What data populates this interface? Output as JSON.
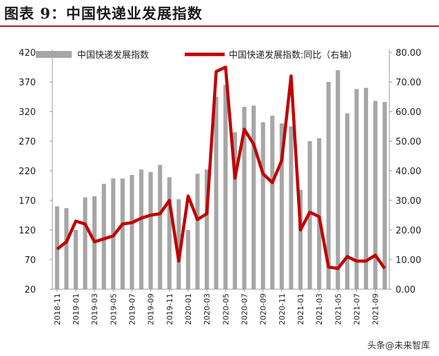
{
  "header": {
    "figure_title": "图表 9：中国快递业发展指数"
  },
  "watermark": "头条@未来智库",
  "colors": {
    "bar": "#a6a6a6",
    "line": "#c00000",
    "title_rule": "#a51c1c"
  },
  "chart_data": {
    "type": "bar",
    "categories": [
      "2018-11",
      "2018-12",
      "2019-01",
      "2019-02",
      "2019-03",
      "2019-04",
      "2019-05",
      "2019-06",
      "2019-07",
      "2019-08",
      "2019-09",
      "2019-10",
      "2019-11",
      "2019-12",
      "2020-01",
      "2020-02",
      "2020-03",
      "2020-04",
      "2020-05",
      "2020-06",
      "2020-07",
      "2020-08",
      "2020-09",
      "2020-10",
      "2020-11",
      "2020-12",
      "2021-01",
      "2021-02",
      "2021-03",
      "2021-04",
      "2021-05",
      "2021-06",
      "2021-07",
      "2021-08",
      "2021-09",
      "2021-10"
    ],
    "x_tick_labels": [
      "2018-11",
      "2019-01",
      "2019-03",
      "2019-05",
      "2019-07",
      "2019-09",
      "2019-11",
      "2020-01",
      "2020-03",
      "2020-05",
      "2020-07",
      "2020-09",
      "2020-11",
      "2021-01",
      "2021-03",
      "2021-05",
      "2021-07",
      "2021-09"
    ],
    "series": [
      {
        "name": "中国快递发展指数",
        "type": "bar",
        "axis": "left",
        "values": [
          160,
          157,
          120,
          175,
          177,
          198,
          207,
          207,
          213,
          222,
          218,
          230,
          209,
          172,
          120,
          215,
          222,
          345,
          365,
          285,
          328,
          330,
          302,
          313,
          300,
          295,
          188,
          270,
          275,
          370,
          390,
          317,
          358,
          360,
          338,
          336
        ]
      },
      {
        "name": "中国快递发展指数:同比（右轴）",
        "type": "line",
        "axis": "right",
        "values": [
          13.5,
          16,
          23,
          22,
          16,
          17,
          18,
          22,
          22.5,
          24,
          25,
          25.5,
          30,
          9.5,
          31.5,
          23.5,
          25.5,
          73.5,
          75,
          37.5,
          54,
          49,
          39,
          36,
          43.5,
          72,
          20,
          26,
          24.5,
          7.5,
          7,
          11,
          9.5,
          9.5,
          11.5,
          7
        ]
      }
    ],
    "y_left": {
      "ticks": [
        20,
        70,
        120,
        170,
        220,
        270,
        320,
        370,
        420
      ],
      "ylim": [
        20,
        420
      ]
    },
    "y_right": {
      "ticks": [
        "0.00",
        "10.00",
        "20.00",
        "30.00",
        "40.00",
        "50.00",
        "60.00",
        "70.00",
        "80.00"
      ],
      "ylim": [
        0,
        80
      ]
    },
    "legend": {
      "placement": "top"
    },
    "grid": false
  }
}
